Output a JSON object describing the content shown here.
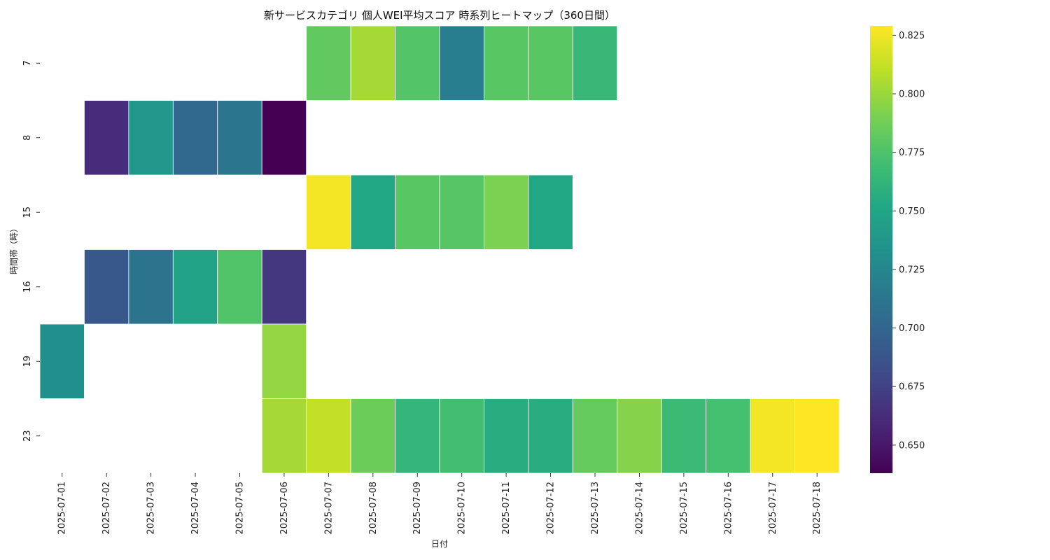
{
  "chart_data": {
    "type": "heatmap",
    "title": "新サービスカテゴリ 個人WEI平均スコア 時系列ヒートマップ（360日間）",
    "xlabel": "日付",
    "ylabel": "時間帯（時）",
    "x_categories": [
      "2025-07-01",
      "2025-07-02",
      "2025-07-03",
      "2025-07-04",
      "2025-07-05",
      "2025-07-06",
      "2025-07-07",
      "2025-07-08",
      "2025-07-09",
      "2025-07-10",
      "2025-07-11",
      "2025-07-12",
      "2025-07-13",
      "2025-07-14",
      "2025-07-15",
      "2025-07-16",
      "2025-07-17",
      "2025-07-18"
    ],
    "y_categories": [
      "7",
      "8",
      "15",
      "16",
      "19",
      "23"
    ],
    "values": [
      [
        null,
        null,
        null,
        null,
        null,
        null,
        0.782,
        0.803,
        0.777,
        0.718,
        0.779,
        0.779,
        0.765,
        null,
        null,
        null,
        null,
        null
      ],
      [
        null,
        0.662,
        0.738,
        0.702,
        0.713,
        0.638,
        null,
        null,
        null,
        null,
        null,
        null,
        null,
        null,
        null,
        null,
        null,
        null
      ],
      [
        null,
        null,
        null,
        null,
        null,
        null,
        0.826,
        0.752,
        0.779,
        0.778,
        0.791,
        0.752,
        null,
        null,
        null,
        null,
        null,
        null
      ],
      [
        null,
        0.69,
        0.711,
        0.748,
        0.776,
        0.668,
        null,
        null,
        null,
        null,
        null,
        null,
        null,
        null,
        null,
        null,
        null,
        null
      ],
      [
        0.733,
        null,
        null,
        null,
        null,
        0.798,
        null,
        null,
        null,
        null,
        null,
        null,
        null,
        null,
        null,
        null,
        null,
        null
      ],
      [
        null,
        null,
        null,
        null,
        null,
        0.803,
        0.812,
        0.786,
        0.763,
        0.771,
        0.756,
        0.756,
        0.783,
        0.794,
        0.767,
        0.772,
        0.826,
        0.829
      ]
    ],
    "colorbar": {
      "colormap": "viridis",
      "vmin": 0.638,
      "vmax": 0.829,
      "ticks": [
        0.65,
        0.675,
        0.7,
        0.725,
        0.75,
        0.775,
        0.8,
        0.825
      ],
      "tick_labels": [
        "0.650",
        "0.675",
        "0.700",
        "0.725",
        "0.750",
        "0.775",
        "0.800",
        "0.825"
      ]
    }
  }
}
